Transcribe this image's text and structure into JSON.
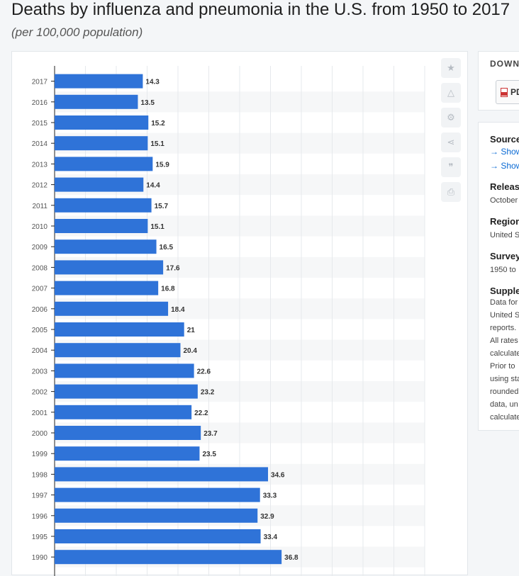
{
  "header": {
    "title": "Deaths by influenza and pneumonia in the U.S. from 1950 to 2017",
    "subtitle": "(per 100,000 population)"
  },
  "toolbar": {
    "buttons": [
      {
        "name": "favorite",
        "icon": "star-icon",
        "glyph": "★"
      },
      {
        "name": "notification",
        "icon": "bell-icon",
        "glyph": "🔔"
      },
      {
        "name": "settings",
        "icon": "gear-icon",
        "glyph": "⚙"
      },
      {
        "name": "share",
        "icon": "share-icon",
        "glyph": "⋖"
      },
      {
        "name": "cite",
        "icon": "quote-icon",
        "glyph": "❞"
      },
      {
        "name": "print",
        "icon": "print-icon",
        "glyph": "⎙"
      }
    ]
  },
  "download": {
    "heading": "DOWNL",
    "pdf_label": "PD"
  },
  "info": {
    "source_heading": "Source",
    "source_links": [
      "→ Show",
      "→ Show"
    ],
    "release_heading": "Release",
    "release_value": "October",
    "region_heading": "Region",
    "region_value": "United S",
    "survey_heading": "Survey",
    "survey_value": "1950 to",
    "supp_heading": "Supple",
    "supp_lines": [
      "Data for",
      "United S",
      "reports.",
      "All rates",
      "calculate",
      "Prior to",
      "using sta",
      "rounded",
      "data, un",
      "calculate"
    ]
  },
  "colors": {
    "bar": "#2f73d8",
    "grid": "#e6e9ec",
    "stripe": "#f6f7f8",
    "label": "#333333"
  },
  "chart_data": {
    "type": "bar",
    "orientation": "horizontal",
    "categories": [
      "2017",
      "2016",
      "2015",
      "2014",
      "2013",
      "2012",
      "2011",
      "2010",
      "2009",
      "2008",
      "2007",
      "2006",
      "2005",
      "2004",
      "2003",
      "2002",
      "2001",
      "2000",
      "1999",
      "1998",
      "1997",
      "1996",
      "1995",
      "1990"
    ],
    "values": [
      14.3,
      13.5,
      15.2,
      15.1,
      15.9,
      14.4,
      15.7,
      15.1,
      16.5,
      17.6,
      16.8,
      18.4,
      21,
      20.4,
      22.6,
      23.2,
      22.2,
      23.7,
      23.5,
      34.6,
      33.3,
      32.9,
      33.4,
      36.8
    ],
    "value_labels": [
      "14.3",
      "13.5",
      "15.2",
      "15.1",
      "15.9",
      "14.4",
      "15.7",
      "15.1",
      "16.5",
      "17.6",
      "16.8",
      "18.4",
      "21",
      "20.4",
      "22.6",
      "23.2",
      "22.2",
      "23.7",
      "23.5",
      "34.6",
      "33.3",
      "32.9",
      "33.4",
      "36.8"
    ],
    "xlim": [
      0,
      60
    ],
    "grid": true
  }
}
